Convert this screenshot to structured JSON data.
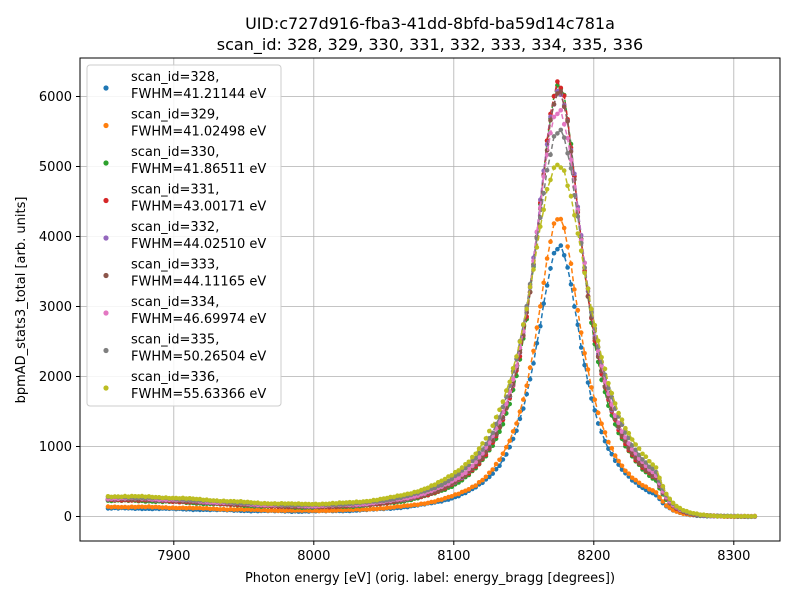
{
  "chart_data": {
    "type": "scatter",
    "title_line1": "UID:c727d916-fba3-41dd-8bfd-ba59d14c781a",
    "title_line2": "scan_id: 328, 329, 330, 331, 332, 333, 334, 335, 336",
    "xlabel": "Photon energy [eV] (orig. label: energy_bragg [degrees])",
    "ylabel": "bpmAD_stats3_total [arb. units]",
    "xlim": [
      7833,
      8333
    ],
    "ylim": [
      -350,
      6550
    ],
    "xticks": [
      7900,
      8000,
      8100,
      8200,
      8300
    ],
    "yticks": [
      0,
      1000,
      2000,
      3000,
      4000,
      5000,
      6000
    ],
    "grid": true,
    "legend_position": "upper-left",
    "x_range": [
      7853,
      8315
    ],
    "peak_center": 8175,
    "series": [
      {
        "scan_id": 328,
        "fwhm_label": "FWHM=41.21144 eV",
        "label_line1": "scan_id=328,",
        "label_line2": "FWHM=41.21144 eV",
        "color": "#1f77b4",
        "peak": 3870,
        "baseline_low": 100,
        "fwhm": 41.21
      },
      {
        "scan_id": 329,
        "fwhm_label": "FWHM=41.02498 eV",
        "label_line1": "scan_id=329,",
        "label_line2": "FWHM=41.02498 eV",
        "color": "#ff7f0e",
        "peak": 4250,
        "baseline_low": 120,
        "fwhm": 41.02
      },
      {
        "scan_id": 330,
        "fwhm_label": "FWHM=41.86511 eV",
        "label_line1": "scan_id=330,",
        "label_line2": "FWHM=41.86511 eV",
        "color": "#2ca02c",
        "peak": 6200,
        "baseline_low": 200,
        "fwhm": 41.87
      },
      {
        "scan_id": 331,
        "fwhm_label": "FWHM=43.00171 eV",
        "label_line1": "scan_id=331,",
        "label_line2": "FWHM=43.00171 eV",
        "color": "#d62728",
        "peak": 6150,
        "baseline_low": 210,
        "fwhm": 43.0
      },
      {
        "scan_id": 332,
        "fwhm_label": "FWHM=44.02510 eV",
        "label_line1": "scan_id=332,",
        "label_line2": "FWHM=44.02510 eV",
        "color": "#9467bd",
        "peak": 6100,
        "baseline_low": 220,
        "fwhm": 44.03
      },
      {
        "scan_id": 333,
        "fwhm_label": "FWHM=44.11165 eV",
        "label_line1": "scan_id=333,",
        "label_line2": "FWHM=44.11165 eV",
        "color": "#8c564b",
        "peak": 6030,
        "baseline_low": 220,
        "fwhm": 44.11
      },
      {
        "scan_id": 334,
        "fwhm_label": "FWHM=46.69974 eV",
        "label_line1": "scan_id=334,",
        "label_line2": "FWHM=46.69974 eV",
        "color": "#e377c2",
        "peak": 5820,
        "baseline_low": 230,
        "fwhm": 46.7
      },
      {
        "scan_id": 335,
        "fwhm_label": "FWHM=50.26504 eV",
        "label_line1": "scan_id=335,",
        "label_line2": "FWHM=50.26504 eV",
        "color": "#7f7f7f",
        "peak": 5500,
        "baseline_low": 240,
        "fwhm": 50.27
      },
      {
        "scan_id": 336,
        "fwhm_label": "FWHM=55.63366 eV",
        "label_line1": "scan_id=336,",
        "label_line2": "FWHM=55.63366 eV",
        "color": "#bcbd22",
        "peak": 5030,
        "baseline_low": 250,
        "fwhm": 55.63
      }
    ]
  }
}
